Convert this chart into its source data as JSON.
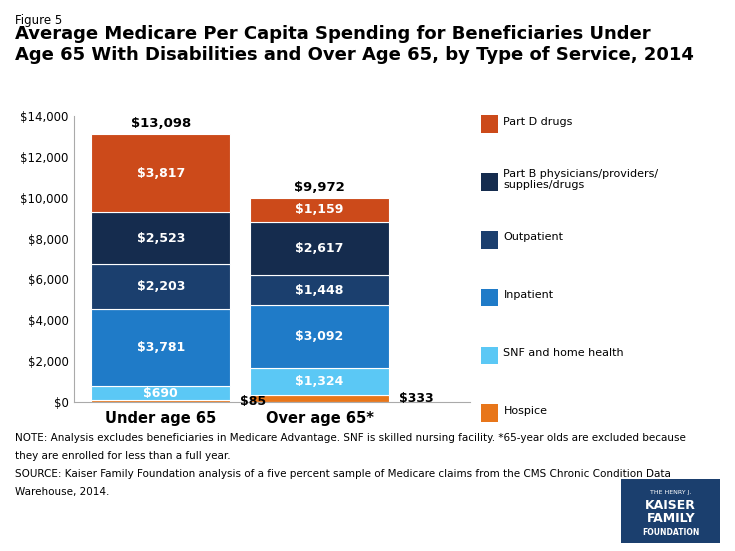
{
  "title": "Average Medicare Per Capita Spending for Beneficiaries Under\nAge 65 With Disabilities and Over Age 65, by Type of Service, 2014",
  "figure_label": "Figure 5",
  "categories": [
    "Under age 65",
    "Over age 65*"
  ],
  "segments": [
    {
      "label": "Hospice",
      "color": "#E8761A",
      "values": [
        85,
        333
      ]
    },
    {
      "label": "SNF and home health",
      "color": "#5BC8F5",
      "values": [
        690,
        1324
      ]
    },
    {
      "label": "Inpatient",
      "color": "#1F7BC8",
      "values": [
        3781,
        3092
      ]
    },
    {
      "label": "Outpatient",
      "color": "#1B3F6E",
      "values": [
        2203,
        1448
      ]
    },
    {
      "label": "Part B physicians/providers/\nsupplies/drugs",
      "color": "#152C4E",
      "values": [
        2523,
        2617
      ]
    },
    {
      "label": "Part D drugs",
      "color": "#CC4A1A",
      "values": [
        3817,
        1159
      ]
    }
  ],
  "totals": [
    "$13,098",
    "$9,972"
  ],
  "ylim": [
    0,
    14000
  ],
  "yticks": [
    0,
    2000,
    4000,
    6000,
    8000,
    10000,
    12000,
    14000
  ],
  "ytick_labels": [
    "$0",
    "$2,000",
    "$4,000",
    "$6,000",
    "$8,000",
    "$10,000",
    "$12,000",
    "$14,000"
  ],
  "note1": "NOTE: Analysis excludes beneficiaries in Medicare Advantage. SNF is skilled nursing facility. *65-year olds are excluded because",
  "note2": "they are enrolled for less than a full year.",
  "note3": "SOURCE: Kaiser Family Foundation analysis of a five percent sample of Medicare claims from the CMS Chronic Condition Data",
  "note4": "Warehouse, 2014.",
  "background_color": "#FFFFFF",
  "bar_width": 0.35,
  "bar_positions": [
    0.22,
    0.62
  ],
  "xlim": [
    0.0,
    1.0
  ],
  "legend_items": [
    {
      "label": "Part D drugs",
      "color": "#CC4A1A"
    },
    {
      "label": "Part B physicians/providers/\nsupplies/drugs",
      "color": "#152C4E"
    },
    {
      "label": "Outpatient",
      "color": "#1B3F6E"
    },
    {
      "label": "Inpatient",
      "color": "#1F7BC8"
    },
    {
      "label": "SNF and home health",
      "color": "#5BC8F5"
    },
    {
      "label": "Hospice",
      "color": "#E8761A"
    }
  ]
}
